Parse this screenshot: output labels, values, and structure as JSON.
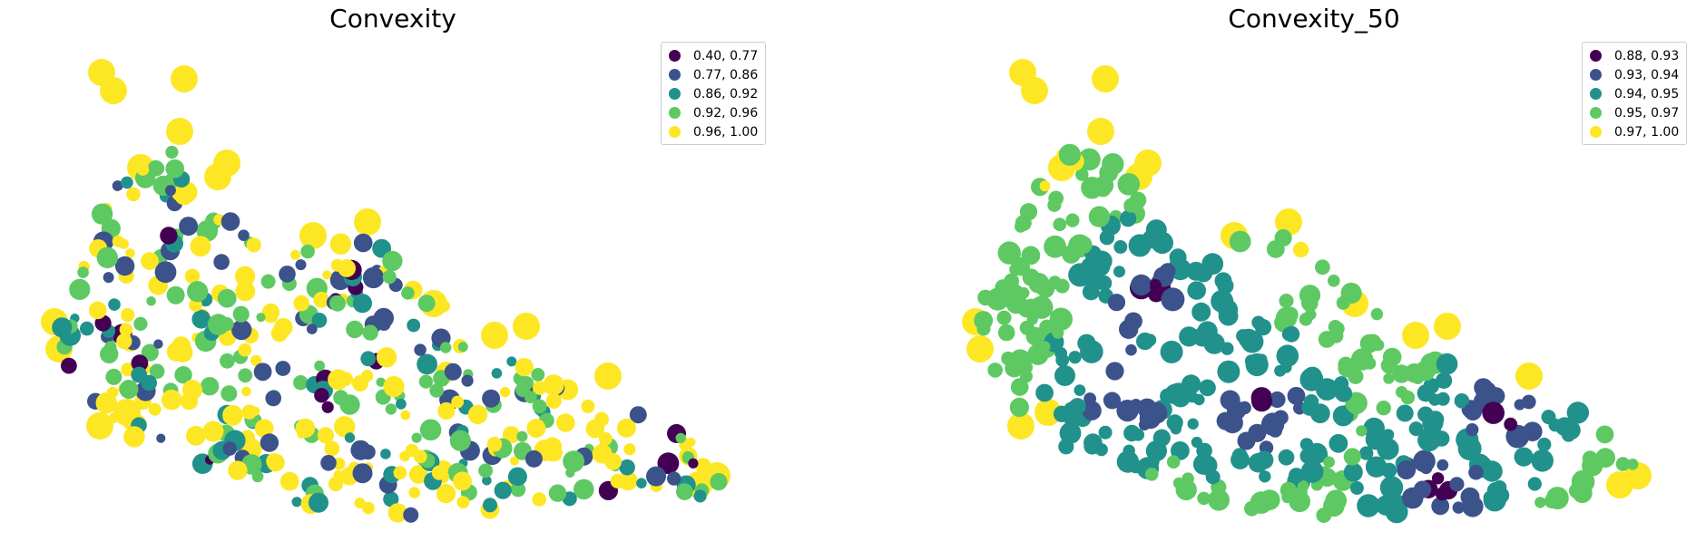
{
  "maps": [
    {
      "title": "Convexity",
      "legend": [
        {
          "label": "0.40, 0.77",
          "color": "#440154"
        },
        {
          "label": "0.77, 0.86",
          "color": "#3b528b"
        },
        {
          "label": "0.86, 0.92",
          "color": "#21918c"
        },
        {
          "label": "0.92, 0.96",
          "color": "#5ec962"
        },
        {
          "label": "0.96, 1.00",
          "color": "#fde725"
        }
      ]
    },
    {
      "title": "Convexity_50",
      "legend": [
        {
          "label": "0.88, 0.93",
          "color": "#440154"
        },
        {
          "label": "0.93, 0.94",
          "color": "#3b528b"
        },
        {
          "label": "0.94, 0.95",
          "color": "#21918c"
        },
        {
          "label": "0.95, 0.97",
          "color": "#5ec962"
        },
        {
          "label": "0.97, 1.00",
          "color": "#fde725"
        }
      ]
    }
  ]
}
